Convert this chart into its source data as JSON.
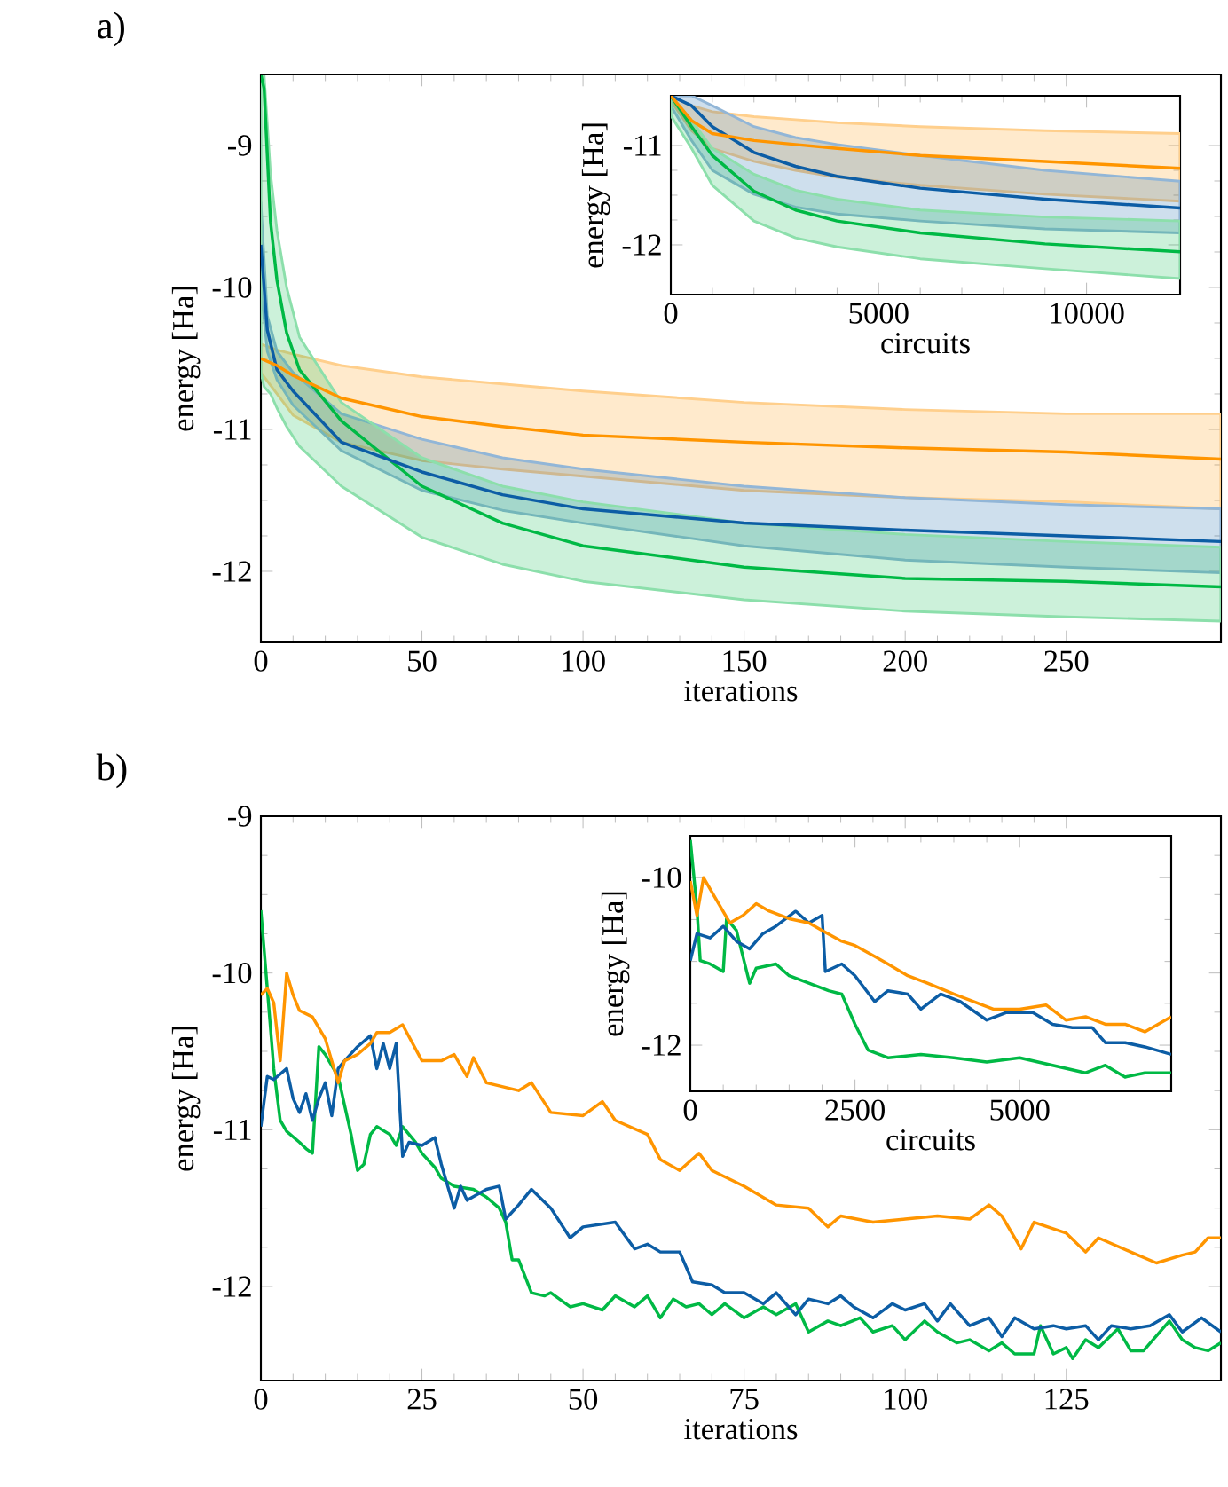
{
  "chart_data": [
    {
      "type": "line",
      "title": "a)",
      "xlabel": "iterations",
      "ylabel": "energy [Ha]",
      "xlim": [
        0,
        298
      ],
      "ylim": [
        -12.5,
        -8.5
      ],
      "xticks": [
        0,
        50,
        100,
        150,
        200,
        250
      ],
      "yticks": [
        -12,
        -11,
        -10,
        -9
      ],
      "series": [
        {
          "color": "#ff9500",
          "x": [
            0,
            5,
            10,
            25,
            50,
            75,
            100,
            150,
            200,
            250,
            298
          ],
          "values": [
            -10.5,
            -10.55,
            -10.62,
            -10.78,
            -10.91,
            -10.98,
            -11.04,
            -11.09,
            -11.13,
            -11.16,
            -11.21
          ],
          "upper": [
            -10.4,
            -10.44,
            -10.47,
            -10.55,
            -10.63,
            -10.68,
            -10.73,
            -10.81,
            -10.86,
            -10.89,
            -10.89
          ],
          "lower": [
            -10.6,
            -10.75,
            -10.9,
            -11.09,
            -11.22,
            -11.28,
            -11.33,
            -11.43,
            -11.48,
            -11.51,
            -11.56
          ]
        },
        {
          "color": "#0c5da5",
          "x": [
            0,
            2,
            5,
            10,
            25,
            50,
            75,
            100,
            150,
            200,
            250,
            298
          ],
          "values": [
            -9.7,
            -10.3,
            -10.58,
            -10.73,
            -11.09,
            -11.3,
            -11.46,
            -11.56,
            -11.66,
            -11.71,
            -11.75,
            -11.79
          ],
          "upper": [
            -9.4,
            -10.2,
            -10.45,
            -10.6,
            -10.89,
            -11.07,
            -11.2,
            -11.28,
            -11.4,
            -11.48,
            -11.53,
            -11.56
          ],
          "lower": [
            -10.0,
            -10.45,
            -10.65,
            -10.83,
            -11.15,
            -11.43,
            -11.57,
            -11.66,
            -11.82,
            -11.92,
            -11.97,
            -12.01
          ]
        },
        {
          "color": "#00b945",
          "x": [
            0,
            1,
            3,
            5,
            8,
            12,
            25,
            50,
            75,
            100,
            150,
            200,
            250,
            298
          ],
          "values": [
            -8.5,
            -8.6,
            -9.54,
            -9.95,
            -10.32,
            -10.58,
            -10.94,
            -11.4,
            -11.66,
            -11.82,
            -11.97,
            -12.05,
            -12.07,
            -12.11
          ],
          "upper": [
            -8.5,
            -8.5,
            -9.2,
            -9.6,
            -10.0,
            -10.35,
            -10.81,
            -11.2,
            -11.4,
            -11.51,
            -11.66,
            -11.74,
            -11.79,
            -11.83
          ],
          "lower": [
            -10.6,
            -10.7,
            -10.75,
            -10.85,
            -10.98,
            -11.12,
            -11.4,
            -11.76,
            -11.95,
            -12.07,
            -12.2,
            -12.28,
            -12.32,
            -12.35
          ]
        }
      ]
    },
    {
      "type": "line",
      "xlabel": "circuits",
      "ylabel": "energy [Ha]",
      "xlim": [
        0,
        12250
      ],
      "ylim": [
        -12.5,
        -10.5
      ],
      "xticks": [
        0,
        5000,
        10000
      ],
      "yticks": [
        -12,
        -11
      ],
      "series": [
        {
          "color": "#ff9500",
          "x": [
            0,
            500,
            1000,
            2000,
            3000,
            4000,
            6000,
            9000,
            12250
          ],
          "values": [
            -10.5,
            -10.75,
            -10.88,
            -10.95,
            -10.99,
            -11.03,
            -11.1,
            -11.16,
            -11.23
          ],
          "upper": [
            -10.5,
            -10.6,
            -10.66,
            -10.71,
            -10.74,
            -10.77,
            -10.81,
            -10.85,
            -10.88
          ],
          "lower": [
            -10.55,
            -10.85,
            -11.03,
            -11.16,
            -11.25,
            -11.32,
            -11.4,
            -11.49,
            -11.56
          ]
        },
        {
          "color": "#0c5da5",
          "x": [
            0,
            500,
            1000,
            2000,
            3000,
            4000,
            6000,
            9000,
            12250
          ],
          "values": [
            -10.5,
            -10.6,
            -10.81,
            -11.07,
            -11.21,
            -11.31,
            -11.43,
            -11.54,
            -11.63
          ],
          "upper": [
            -10.5,
            -10.5,
            -10.6,
            -10.81,
            -10.92,
            -10.99,
            -11.1,
            -11.25,
            -11.36
          ],
          "lower": [
            -10.6,
            -10.95,
            -11.25,
            -11.49,
            -11.62,
            -11.69,
            -11.76,
            -11.84,
            -11.88
          ]
        },
        {
          "color": "#00b945",
          "x": [
            0,
            500,
            1000,
            2000,
            3000,
            4000,
            6000,
            9000,
            12250
          ],
          "values": [
            -10.5,
            -10.81,
            -11.1,
            -11.46,
            -11.65,
            -11.76,
            -11.88,
            -11.99,
            -12.07
          ],
          "upper": [
            -10.5,
            -10.75,
            -11.03,
            -11.29,
            -11.45,
            -11.54,
            -11.65,
            -11.72,
            -11.76
          ],
          "lower": [
            -10.7,
            -11.03,
            -11.4,
            -11.76,
            -11.93,
            -12.02,
            -12.14,
            -12.24,
            -12.34
          ]
        }
      ]
    },
    {
      "type": "line",
      "title": "b)",
      "xlabel": "iterations",
      "ylabel": "energy [Ha]",
      "xlim": [
        0,
        149
      ],
      "ylim": [
        -12.6,
        -9
      ],
      "xticks": [
        0,
        25,
        50,
        75,
        100,
        125
      ],
      "yticks": [
        -12,
        -11,
        -10,
        -9
      ],
      "series": [
        {
          "color": "#ff9500",
          "x": [
            0,
            1,
            2,
            3,
            4,
            5,
            6,
            8,
            10,
            12,
            13,
            15,
            17,
            18,
            20,
            22,
            25,
            28,
            30,
            32,
            33,
            35,
            40,
            42,
            45,
            50,
            53,
            55,
            60,
            62,
            65,
            68,
            70,
            75,
            80,
            85,
            88,
            90,
            95,
            100,
            105,
            110,
            113,
            115,
            118,
            120,
            125,
            128,
            130,
            135,
            139,
            143,
            145,
            147,
            149
          ],
          "values": [
            -10.14,
            -10.1,
            -10.19,
            -10.56,
            -10.0,
            -10.14,
            -10.24,
            -10.28,
            -10.42,
            -10.7,
            -10.56,
            -10.52,
            -10.45,
            -10.38,
            -10.38,
            -10.33,
            -10.56,
            -10.56,
            -10.52,
            -10.66,
            -10.54,
            -10.7,
            -10.75,
            -10.7,
            -10.89,
            -10.91,
            -10.82,
            -10.94,
            -11.03,
            -11.19,
            -11.26,
            -11.15,
            -11.26,
            -11.36,
            -11.48,
            -11.5,
            -11.62,
            -11.55,
            -11.59,
            -11.57,
            -11.55,
            -11.57,
            -11.48,
            -11.55,
            -11.76,
            -11.59,
            -11.66,
            -11.78,
            -11.69,
            -11.78,
            -11.85,
            -11.8,
            -11.78,
            -11.69,
            -11.69
          ]
        },
        {
          "color": "#0c5da5",
          "x": [
            0,
            1,
            2,
            4,
            5,
            6,
            7,
            8,
            9,
            10,
            11,
            12,
            13,
            15,
            17,
            18,
            19,
            20,
            21,
            22,
            23,
            25,
            27,
            28,
            30,
            31,
            32,
            35,
            37,
            38,
            40,
            42,
            45,
            48,
            50,
            55,
            58,
            60,
            62,
            65,
            67,
            70,
            72,
            75,
            78,
            80,
            83,
            85,
            88,
            90,
            92,
            95,
            98,
            100,
            103,
            105,
            107,
            110,
            113,
            115,
            117,
            120,
            123,
            125,
            128,
            130,
            132,
            135,
            138,
            141,
            143,
            146,
            149
          ],
          "values": [
            -10.98,
            -10.66,
            -10.68,
            -10.61,
            -10.8,
            -10.89,
            -10.77,
            -10.94,
            -10.8,
            -10.7,
            -10.91,
            -10.61,
            -10.56,
            -10.47,
            -10.4,
            -10.61,
            -10.45,
            -10.61,
            -10.45,
            -11.17,
            -11.08,
            -11.1,
            -11.05,
            -11.22,
            -11.5,
            -11.36,
            -11.45,
            -11.38,
            -11.36,
            -11.57,
            -11.48,
            -11.38,
            -11.5,
            -11.69,
            -11.62,
            -11.59,
            -11.76,
            -11.73,
            -11.78,
            -11.78,
            -11.97,
            -11.99,
            -12.04,
            -12.04,
            -12.11,
            -12.04,
            -12.18,
            -12.08,
            -12.11,
            -12.06,
            -12.13,
            -12.2,
            -12.11,
            -12.15,
            -12.11,
            -12.22,
            -12.11,
            -12.25,
            -12.2,
            -12.32,
            -12.2,
            -12.27,
            -12.25,
            -12.27,
            -12.25,
            -12.34,
            -12.25,
            -12.27,
            -12.25,
            -12.18,
            -12.29,
            -12.2,
            -12.29
          ]
        },
        {
          "color": "#00b945",
          "x": [
            0,
            1,
            2,
            3,
            4,
            6,
            7,
            8,
            9,
            10,
            12,
            14,
            15,
            16,
            17,
            18,
            20,
            21,
            22,
            24,
            25,
            27,
            28,
            30,
            33,
            35,
            37,
            38,
            39,
            40,
            42,
            44,
            45,
            48,
            50,
            53,
            55,
            58,
            60,
            62,
            64,
            66,
            68,
            70,
            72,
            75,
            78,
            80,
            83,
            85,
            88,
            90,
            93,
            95,
            98,
            100,
            103,
            105,
            108,
            110,
            113,
            115,
            117,
            120,
            121,
            123,
            125,
            126,
            128,
            130,
            133,
            135,
            137,
            141,
            143,
            145,
            147,
            149
          ],
          "values": [
            -9.6,
            -10.1,
            -10.61,
            -10.94,
            -11.01,
            -11.08,
            -11.12,
            -11.15,
            -10.47,
            -10.52,
            -10.66,
            -11.03,
            -11.26,
            -11.22,
            -11.03,
            -10.98,
            -11.03,
            -11.1,
            -10.98,
            -11.08,
            -11.15,
            -11.24,
            -11.31,
            -11.36,
            -11.38,
            -11.43,
            -11.5,
            -11.59,
            -11.83,
            -11.83,
            -12.04,
            -12.06,
            -12.04,
            -12.13,
            -12.11,
            -12.15,
            -12.06,
            -12.13,
            -12.06,
            -12.2,
            -12.08,
            -12.13,
            -12.11,
            -12.18,
            -12.11,
            -12.2,
            -12.13,
            -12.18,
            -12.11,
            -12.29,
            -12.22,
            -12.25,
            -12.2,
            -12.29,
            -12.25,
            -12.34,
            -12.22,
            -12.29,
            -12.36,
            -12.34,
            -12.41,
            -12.36,
            -12.43,
            -12.43,
            -12.25,
            -12.43,
            -12.39,
            -12.46,
            -12.34,
            -12.39,
            -12.27,
            -12.41,
            -12.41,
            -12.22,
            -12.34,
            -12.39,
            -12.41,
            -12.36
          ]
        }
      ]
    },
    {
      "type": "line",
      "xlabel": "circuits",
      "ylabel": "energy [Ha]",
      "xlim": [
        0,
        7300
      ],
      "ylim": [
        -12.55,
        -9.5
      ],
      "xticks": [
        0,
        2500,
        5000
      ],
      "yticks": [
        -12,
        -10
      ],
      "series": [
        {
          "color": "#ff9500",
          "x": [
            0,
            100,
            200,
            400,
            600,
            800,
            1000,
            1200,
            1500,
            1800,
            2000,
            2300,
            2500,
            2800,
            3000,
            3300,
            3600,
            4000,
            4300,
            4600,
            5000,
            5400,
            5700,
            6000,
            6300,
            6600,
            6900,
            7100,
            7300
          ],
          "values": [
            -10.04,
            -10.45,
            -10.0,
            -10.27,
            -10.54,
            -10.45,
            -10.31,
            -10.4,
            -10.49,
            -10.54,
            -10.63,
            -10.76,
            -10.81,
            -10.94,
            -11.03,
            -11.17,
            -11.26,
            -11.39,
            -11.48,
            -11.57,
            -11.57,
            -11.52,
            -11.7,
            -11.66,
            -11.75,
            -11.75,
            -11.84,
            -11.75,
            -11.66
          ]
        },
        {
          "color": "#0c5da5",
          "x": [
            0,
            100,
            300,
            500,
            700,
            900,
            1100,
            1300,
            1600,
            1800,
            2000,
            2050,
            2300,
            2500,
            2800,
            3000,
            3300,
            3500,
            3800,
            4100,
            4500,
            4800,
            5200,
            5500,
            5800,
            6100,
            6300,
            6600,
            6900,
            7300
          ],
          "values": [
            -10.99,
            -10.67,
            -10.72,
            -10.58,
            -10.76,
            -10.85,
            -10.67,
            -10.58,
            -10.4,
            -10.54,
            -10.45,
            -11.12,
            -11.03,
            -11.17,
            -11.48,
            -11.35,
            -11.39,
            -11.57,
            -11.39,
            -11.48,
            -11.7,
            -11.61,
            -11.61,
            -11.75,
            -11.79,
            -11.79,
            -11.97,
            -11.97,
            -12.02,
            -12.11
          ]
        },
        {
          "color": "#00b945",
          "x": [
            0,
            100,
            150,
            300,
            500,
            550,
            700,
            900,
            1000,
            1300,
            1500,
            1800,
            2100,
            2300,
            2500,
            2700,
            3000,
            3500,
            4000,
            4500,
            5000,
            5500,
            6000,
            6300,
            6600,
            6900,
            7300
          ],
          "values": [
            -9.55,
            -10.36,
            -10.99,
            -11.03,
            -11.12,
            -10.49,
            -10.63,
            -11.26,
            -11.08,
            -11.03,
            -11.17,
            -11.26,
            -11.35,
            -11.39,
            -11.75,
            -12.06,
            -12.15,
            -12.11,
            -12.15,
            -12.2,
            -12.15,
            -12.24,
            -12.33,
            -12.24,
            -12.38,
            -12.33,
            -12.33
          ]
        }
      ]
    }
  ]
}
